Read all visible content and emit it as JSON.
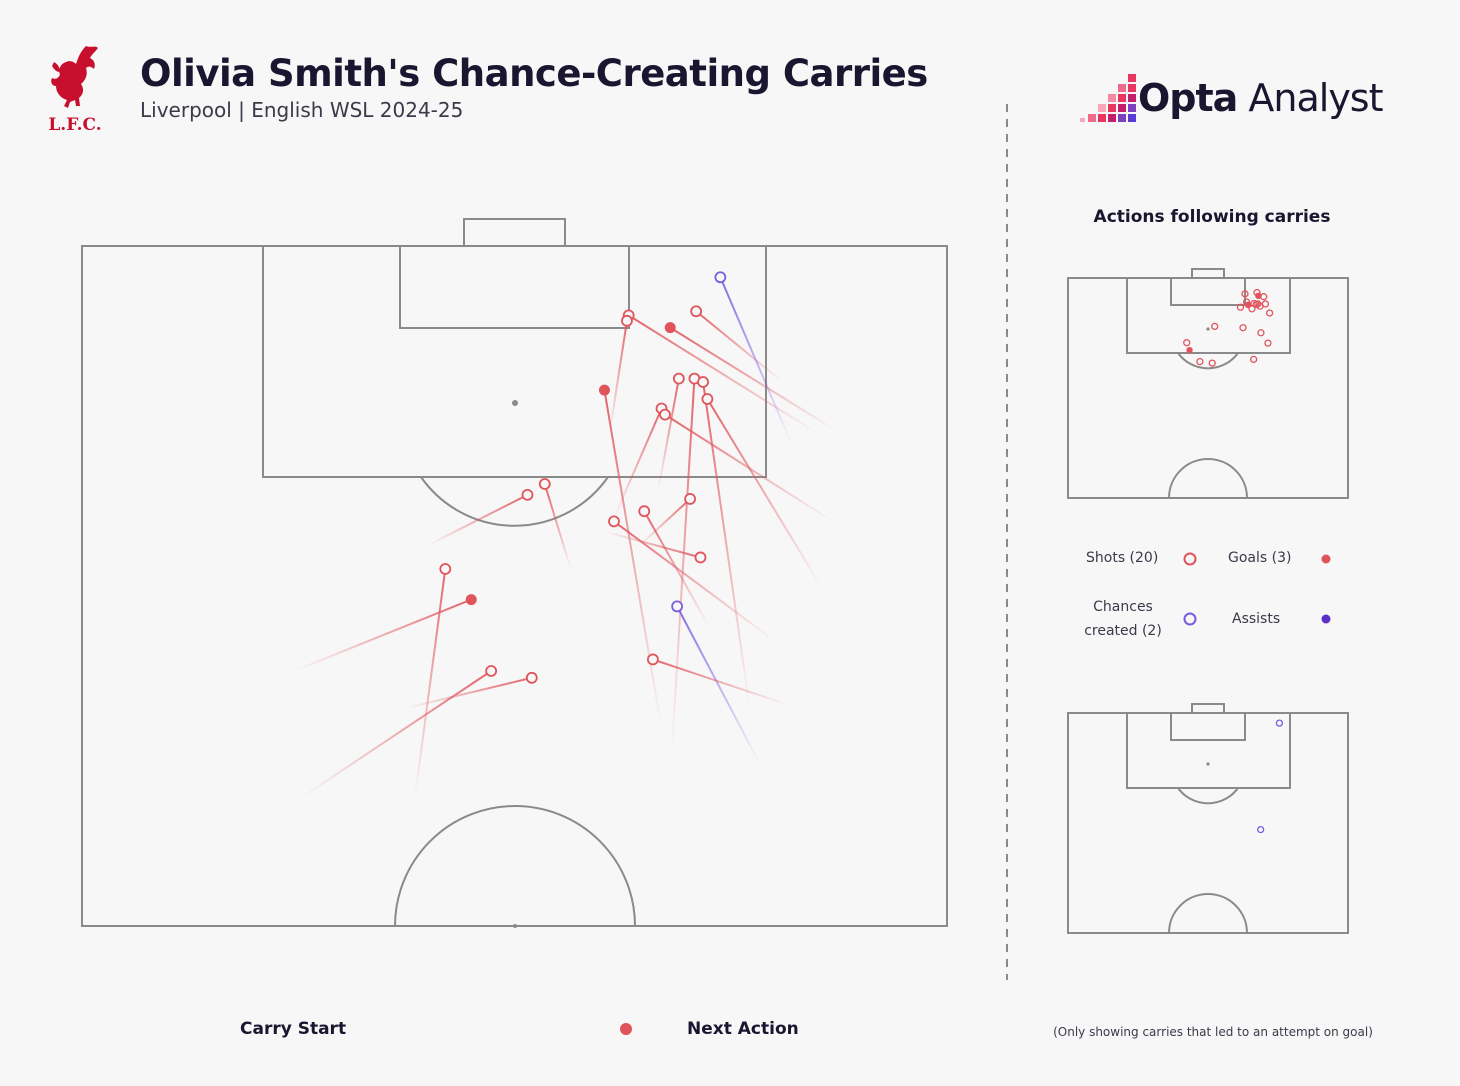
{
  "header": {
    "title": "Olivia Smith's Chance-Creating Carries",
    "subtitle": "Liverpool | English WSL 2024-25",
    "club_badge": "liverpool-liver-bird-logo",
    "club_badge_text": "L.F.C."
  },
  "brand": {
    "name_bold": "Opta",
    "name_light": " Analyst",
    "logo_icon": "opta-pixel-bars-icon"
  },
  "colors": {
    "background": "#f7f7f7",
    "pitch_lines": "#8a8a8a",
    "shot": "#e0545c",
    "chance": "#7a5ce0",
    "text": "#1a1630"
  },
  "mini_panel": {
    "title": "Actions following carries",
    "legend": {
      "shots": "Shots (20)",
      "goals": "Goals (3)",
      "chances_line1": "Chances",
      "chances_line2": "created (2)",
      "assists": "Assists"
    }
  },
  "bottom_legend": {
    "start": "Carry Start",
    "end": "Next Action"
  },
  "footnote": "(Only showing carries that led to an attempt on goal)",
  "chart_data": {
    "type": "scatter",
    "description_units": "pitch coordinates: x = 0 (left touchline) to 100 (right touchline); y = 0 (goal line, attacking end at top) to 100 (halfway line)",
    "carries": [
      {
        "start": [
          85.0,
          27.5
        ],
        "end": [
          63.2,
          10.2
        ],
        "outcome": "shot"
      },
      {
        "start": [
          87.0,
          27.0
        ],
        "end": [
          68.0,
          12.0
        ],
        "outcome": "goal"
      },
      {
        "start": [
          81.0,
          20.0
        ],
        "end": [
          71.0,
          9.6
        ],
        "outcome": "shot"
      },
      {
        "start": [
          61.0,
          27.5
        ],
        "end": [
          63.0,
          11.0
        ],
        "outcome": "shot"
      },
      {
        "start": [
          82.0,
          29.0
        ],
        "end": [
          73.8,
          4.6
        ],
        "outcome": "chance"
      },
      {
        "start": [
          67.0,
          71.0
        ],
        "end": [
          60.4,
          21.2
        ],
        "outcome": "goal"
      },
      {
        "start": [
          61.5,
          40.0
        ],
        "end": [
          67.0,
          23.9
        ],
        "outcome": "shot"
      },
      {
        "start": [
          66.6,
          36.0
        ],
        "end": [
          69.0,
          19.5
        ],
        "outcome": "shot"
      },
      {
        "start": [
          68.2,
          74.0
        ],
        "end": [
          70.8,
          19.5
        ],
        "outcome": "shot"
      },
      {
        "start": [
          77.2,
          68.0
        ],
        "end": [
          71.8,
          20.0
        ],
        "outcome": "shot"
      },
      {
        "start": [
          85.5,
          50.2
        ],
        "end": [
          72.3,
          22.5
        ],
        "outcome": "shot"
      },
      {
        "start": [
          86.8,
          40.5
        ],
        "end": [
          67.4,
          24.8
        ],
        "outcome": "shot"
      },
      {
        "start": [
          80.0,
          58.0
        ],
        "end": [
          61.5,
          40.5
        ],
        "outcome": "shot"
      },
      {
        "start": [
          72.5,
          56.0
        ],
        "end": [
          65.0,
          39.0
        ],
        "outcome": "shot"
      },
      {
        "start": [
          60.5,
          42.0
        ],
        "end": [
          71.5,
          45.8
        ],
        "outcome": "shot"
      },
      {
        "start": [
          64.5,
          44.0
        ],
        "end": [
          70.3,
          37.2
        ],
        "outcome": "shot"
      },
      {
        "start": [
          40.0,
          44.0
        ],
        "end": [
          51.5,
          36.6
        ],
        "outcome": "shot"
      },
      {
        "start": [
          56.5,
          47.5
        ],
        "end": [
          53.5,
          35.0
        ],
        "outcome": "shot"
      },
      {
        "start": [
          24.5,
          62.5
        ],
        "end": [
          45.0,
          52.0
        ],
        "outcome": "goal"
      },
      {
        "start": [
          38.5,
          81.0
        ],
        "end": [
          42.0,
          47.5
        ],
        "outcome": "shot"
      },
      {
        "start": [
          25.5,
          81.0
        ],
        "end": [
          47.3,
          62.5
        ],
        "outcome": "shot"
      },
      {
        "start": [
          37.3,
          68.0
        ],
        "end": [
          52.0,
          63.5
        ],
        "outcome": "shot"
      },
      {
        "start": [
          78.3,
          76.0
        ],
        "end": [
          68.8,
          53.0
        ],
        "outcome": "chance"
      },
      {
        "start": [
          81.7,
          67.5
        ],
        "end": [
          66.0,
          60.8
        ],
        "outcome": "shot"
      }
    ],
    "mini_shots": [
      {
        "x": 63.2,
        "y": 7.2,
        "outcome": "shot"
      },
      {
        "x": 67.5,
        "y": 6.6,
        "outcome": "shot"
      },
      {
        "x": 68.0,
        "y": 8.1,
        "outcome": "goal"
      },
      {
        "x": 67.2,
        "y": 12.0,
        "outcome": "shot"
      },
      {
        "x": 64.3,
        "y": 12.2,
        "outcome": "goal"
      },
      {
        "x": 61.6,
        "y": 13.3,
        "outcome": "shot"
      },
      {
        "x": 65.7,
        "y": 14.0,
        "outcome": "shot"
      },
      {
        "x": 67.8,
        "y": 11.8,
        "outcome": "shot"
      },
      {
        "x": 68.6,
        "y": 12.8,
        "outcome": "shot"
      },
      {
        "x": 66.4,
        "y": 11.6,
        "outcome": "shot"
      },
      {
        "x": 72.0,
        "y": 15.9,
        "outcome": "shot"
      },
      {
        "x": 52.4,
        "y": 22.0,
        "outcome": "shot"
      },
      {
        "x": 62.5,
        "y": 22.6,
        "outcome": "shot"
      },
      {
        "x": 68.9,
        "y": 24.9,
        "outcome": "shot"
      },
      {
        "x": 71.4,
        "y": 29.6,
        "outcome": "shot"
      },
      {
        "x": 42.4,
        "y": 29.4,
        "outcome": "shot"
      },
      {
        "x": 43.4,
        "y": 32.8,
        "outcome": "goal"
      },
      {
        "x": 47.1,
        "y": 38.0,
        "outcome": "shot"
      },
      {
        "x": 51.5,
        "y": 38.7,
        "outcome": "shot"
      },
      {
        "x": 66.3,
        "y": 37.0,
        "outcome": "shot"
      },
      {
        "x": 69.9,
        "y": 8.5,
        "outcome": "shot"
      },
      {
        "x": 70.5,
        "y": 11.8,
        "outcome": "shot"
      },
      {
        "x": 63.8,
        "y": 10.9,
        "outcome": "shot"
      }
    ],
    "mini_chances": [
      {
        "x": 75.5,
        "y": 4.6,
        "outcome": "chance"
      },
      {
        "x": 68.8,
        "y": 53.0,
        "outcome": "chance"
      }
    ]
  }
}
